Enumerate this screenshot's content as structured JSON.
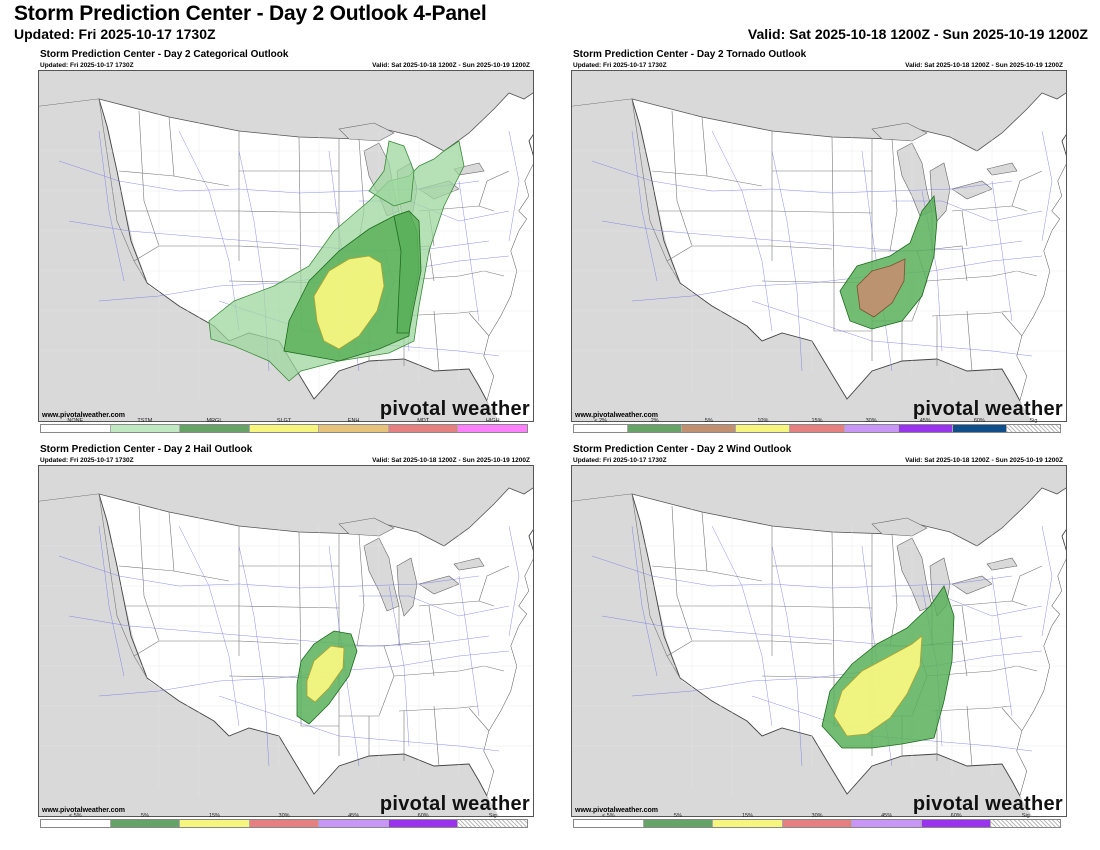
{
  "header": {
    "title": "Storm Prediction Center - Day 2 Outlook 4-Panel",
    "updated": "Updated: Fri 2025-10-17 1730Z",
    "valid": "Valid: Sat 2025-10-18 1200Z - Sun 2025-10-19 1200Z"
  },
  "panels": [
    {
      "title": "Storm Prediction Center - Day 2 Categorical Outlook",
      "updated": "Updated: Fri 2025-10-17 1730Z",
      "valid": "Valid: Sat 2025-10-18 1200Z - Sun 2025-10-19 1200Z",
      "site": "www.pivotalweather.com",
      "brand": "pivotal weather",
      "legend": [
        {
          "label": "NONE",
          "color": "#ffffff"
        },
        {
          "label": "TSTM",
          "color": "#c1e9c1"
        },
        {
          "label": "MRGL",
          "color": "#66a366"
        },
        {
          "label": "SLGT",
          "color": "#f6f67f"
        },
        {
          "label": "ENH",
          "color": "#e6c27a"
        },
        {
          "label": "MDT",
          "color": "#e67f7f"
        },
        {
          "label": "HIGH",
          "color": "#ff80ff"
        }
      ]
    },
    {
      "title": "Storm Prediction Center - Day 2 Tornado Outlook",
      "updated": "Updated: Fri 2025-10-17 1730Z",
      "valid": "Valid: Sat 2025-10-18 1200Z - Sun 2025-10-19 1200Z",
      "site": "www.pivotalweather.com",
      "brand": "pivotal weather",
      "legend": [
        {
          "label": "< 2%",
          "color": "#ffffff"
        },
        {
          "label": "2%",
          "color": "#66a366"
        },
        {
          "label": "5%",
          "color": "#c09070"
        },
        {
          "label": "10%",
          "color": "#f6f67f"
        },
        {
          "label": "15%",
          "color": "#e67f7f"
        },
        {
          "label": "30%",
          "color": "#c896f7"
        },
        {
          "label": "45%",
          "color": "#9933ee"
        },
        {
          "label": "60%",
          "color": "#104e8b"
        },
        {
          "label": "Sig",
          "color": "hatch"
        }
      ]
    },
    {
      "title": "Storm Prediction Center - Day 2 Hail Outlook",
      "updated": "Updated: Fri 2025-10-17 1730Z",
      "valid": "Valid: Sat 2025-10-18 1200Z - Sun 2025-10-19 1200Z",
      "site": "www.pivotalweather.com",
      "brand": "pivotal weather",
      "legend": [
        {
          "label": "< 5%",
          "color": "#ffffff"
        },
        {
          "label": "5%",
          "color": "#66a366"
        },
        {
          "label": "15%",
          "color": "#f6f67f"
        },
        {
          "label": "30%",
          "color": "#e67f7f"
        },
        {
          "label": "45%",
          "color": "#c896f7"
        },
        {
          "label": "60%",
          "color": "#9933ee"
        },
        {
          "label": "Sig",
          "color": "hatch"
        }
      ]
    },
    {
      "title": "Storm Prediction Center - Day 2 Wind Outlook",
      "updated": "Updated: Fri 2025-10-17 1730Z",
      "valid": "Valid: Sat 2025-10-18 1200Z - Sun 2025-10-19 1200Z",
      "site": "www.pivotalweather.com",
      "brand": "pivotal weather",
      "legend": [
        {
          "label": "< 5%",
          "color": "#ffffff"
        },
        {
          "label": "5%",
          "color": "#66a366"
        },
        {
          "label": "15%",
          "color": "#f6f67f"
        },
        {
          "label": "30%",
          "color": "#e67f7f"
        },
        {
          "label": "45%",
          "color": "#c896f7"
        },
        {
          "label": "60%",
          "color": "#9933ee"
        },
        {
          "label": "Sig",
          "color": "hatch"
        }
      ]
    }
  ]
}
